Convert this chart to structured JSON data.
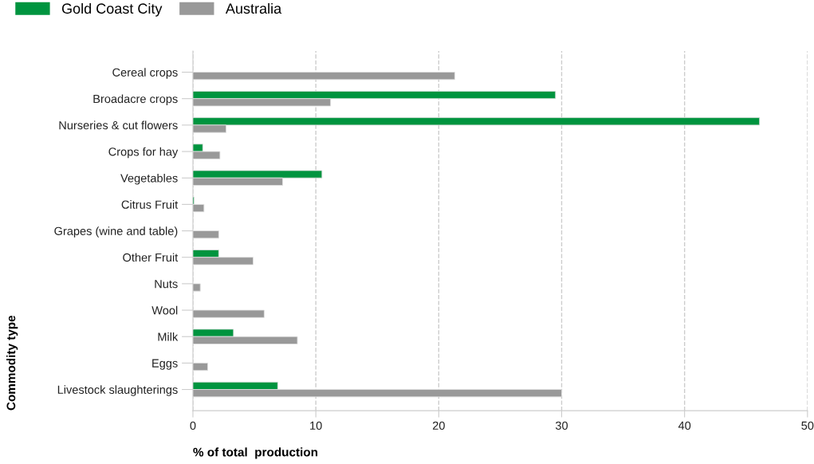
{
  "chart_data": {
    "type": "bar",
    "orientation": "horizontal",
    "xlabel": "% of total  production",
    "ylabel": "Commodity type",
    "categories": [
      "Cereal crops",
      "Broadacre crops",
      "Nurseries & cut flowers",
      "Crops for hay",
      "Vegetables",
      "Citrus Fruit",
      "Grapes (wine and table)",
      "Other Fruit",
      "Nuts",
      "Wool",
      "Milk",
      "Eggs",
      "Livestock slaughterings"
    ],
    "series": [
      {
        "name": "Gold Coast City",
        "color": "#00943f",
        "values": [
          null,
          29.5,
          46.1,
          0.8,
          10.5,
          0.1,
          null,
          2.1,
          null,
          null,
          3.3,
          null,
          6.9
        ]
      },
      {
        "name": "Australia",
        "color": "#999999",
        "values": [
          21.3,
          11.2,
          2.7,
          2.2,
          7.3,
          0.9,
          2.1,
          4.9,
          0.6,
          5.8,
          8.5,
          1.2,
          30.0
        ]
      }
    ],
    "xlim": [
      0,
      50
    ],
    "xticks": [
      0,
      10,
      20,
      30,
      40,
      50
    ],
    "grid": "x",
    "legend": "top left"
  }
}
